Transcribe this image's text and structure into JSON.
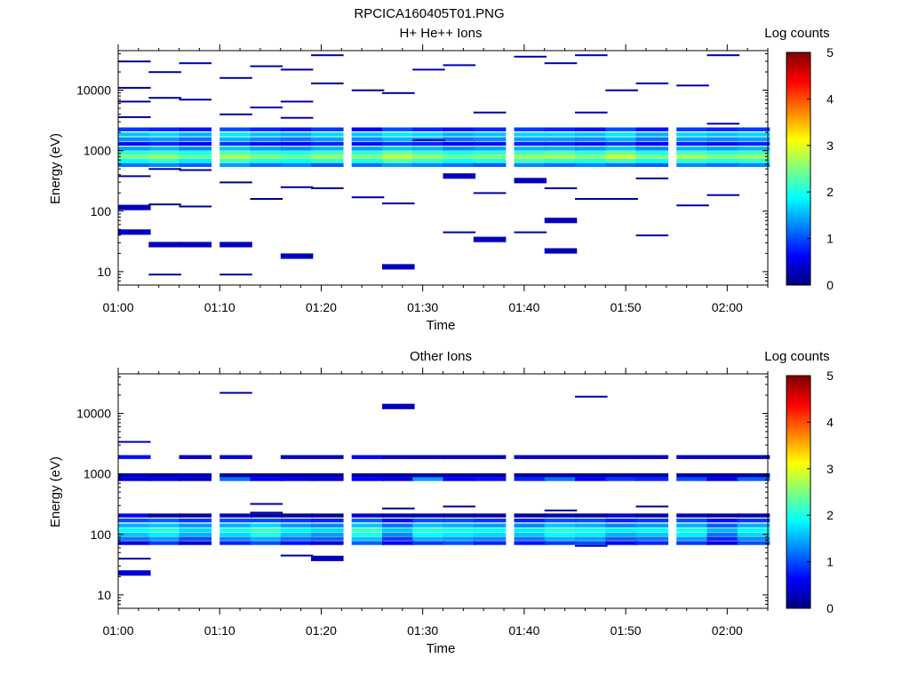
{
  "figure": {
    "title": "RPCICA160405T01.PNG"
  },
  "chart_data": [
    {
      "type": "heatmap",
      "title": "H+ He++ Ions",
      "xlabel": "Time",
      "ylabel": "Energy (eV)",
      "colorbar_label": "Log counts",
      "colorbar_ticks": [
        "0",
        "1",
        "2",
        "3",
        "4",
        "5"
      ],
      "colorbar_range": [
        0,
        5
      ],
      "yscale": "log",
      "ylim": [
        6,
        45000
      ],
      "y_ticks": [
        {
          "value": 10,
          "label": "10"
        },
        {
          "value": 100,
          "label": "100"
        },
        {
          "value": 1000,
          "label": "1000"
        },
        {
          "value": 10000,
          "label": "10000"
        }
      ],
      "xlim_minutes": [
        0,
        64
      ],
      "x_ticks": [
        "01:00",
        "01:10",
        "01:20",
        "01:30",
        "01:40",
        "01:50",
        "02:00"
      ],
      "time_bins": [
        "01:00",
        "01:03",
        "01:06",
        "01:10",
        "01:13",
        "01:16",
        "01:19",
        "01:23",
        "01:26",
        "01:29",
        "01:32",
        "01:35",
        "01:39",
        "01:42",
        "01:45",
        "01:48",
        "01:51",
        "01:55",
        "01:58",
        "02:01"
      ],
      "common_energy_bins": [
        {
          "e": 580,
          "levels": [
            1.2,
            1.3,
            1.1,
            1.4,
            1.2,
            1.3,
            1.1,
            1.2,
            1.4,
            1.3,
            1.2,
            1.1,
            1.3,
            1.2,
            1.3,
            1.2,
            1.1,
            1.3,
            1.2,
            1.3
          ]
        },
        {
          "e": 680,
          "levels": [
            1.9,
            2.1,
            1.8,
            2.2,
            2.0,
            1.9,
            2.1,
            2.0,
            2.3,
            2.1,
            1.9,
            2.0,
            2.2,
            2.1,
            2.0,
            2.2,
            1.9,
            2.1,
            2.0,
            2.1
          ]
        },
        {
          "e": 790,
          "levels": [
            2.5,
            2.6,
            2.4,
            2.7,
            2.5,
            2.4,
            2.6,
            2.5,
            2.8,
            2.6,
            2.4,
            2.5,
            2.6,
            2.7,
            2.5,
            2.9,
            2.5,
            2.7,
            2.5,
            2.6
          ]
        },
        {
          "e": 920,
          "levels": [
            2.1,
            2.2,
            2.0,
            2.3,
            2.1,
            2.0,
            2.2,
            2.1,
            2.4,
            2.2,
            2.0,
            2.1,
            2.2,
            2.3,
            2.1,
            2.4,
            2.0,
            2.2,
            2.1,
            2.2
          ]
        },
        {
          "e": 1080,
          "levels": [
            1.4,
            1.5,
            1.3,
            1.6,
            1.4,
            1.3,
            1.5,
            1.4,
            1.6,
            1.5,
            1.3,
            1.4,
            1.5,
            1.5,
            1.4,
            1.6,
            1.3,
            1.5,
            1.4,
            1.5
          ]
        },
        {
          "e": 1300,
          "levels": [
            0.7,
            0.8,
            0.6,
            0.9,
            0.7,
            0.6,
            0.8,
            0.7,
            0.9,
            0.8,
            0.6,
            0.7,
            0.8,
            0.8,
            0.7,
            0.9,
            0.6,
            0.8,
            0.7,
            0.8
          ]
        },
        {
          "e": 1550,
          "levels": [
            1.3,
            1.4,
            1.2,
            1.5,
            1.3,
            1.2,
            1.4,
            1.3,
            1.5,
            1.4,
            1.2,
            1.3,
            1.4,
            1.4,
            1.3,
            1.5,
            1.2,
            1.4,
            1.3,
            1.4
          ]
        },
        {
          "e": 1850,
          "levels": [
            1.6,
            1.7,
            1.5,
            1.8,
            1.6,
            1.5,
            1.7,
            1.6,
            1.8,
            1.7,
            1.5,
            1.6,
            1.7,
            1.7,
            1.6,
            1.8,
            1.5,
            1.7,
            1.6,
            1.7
          ]
        },
        {
          "e": 2250,
          "levels": [
            0.9,
            0.8,
            0.7,
            1.0,
            0.8,
            0.7,
            0.9,
            0.6,
            1.0,
            0.8,
            0.7,
            0.8,
            0.9,
            0.8,
            0.7,
            1.0,
            0.7,
            0.9,
            0.8,
            0.9
          ]
        }
      ],
      "sparse_cells": [
        {
          "t": 0,
          "e": 115,
          "v": 0.3
        },
        {
          "t": 0,
          "e": 45,
          "v": 0.3
        },
        {
          "t": 0,
          "e": 380,
          "v": 0.2
        },
        {
          "t": 0,
          "e": 3600,
          "v": 0.1
        },
        {
          "t": 0,
          "e": 6500,
          "v": 0.1
        },
        {
          "t": 0,
          "e": 11000,
          "v": 0.1
        },
        {
          "t": 0,
          "e": 30000,
          "v": 0.1
        },
        {
          "t": 1,
          "e": 9,
          "v": 0.2
        },
        {
          "t": 1,
          "e": 28,
          "v": 0.3
        },
        {
          "t": 1,
          "e": 130,
          "v": 0.1
        },
        {
          "t": 1,
          "e": 500,
          "v": 0.1
        },
        {
          "t": 1,
          "e": 7500,
          "v": 0.1
        },
        {
          "t": 1,
          "e": 20000,
          "v": 0.2
        },
        {
          "t": 2,
          "e": 28,
          "v": 0.3
        },
        {
          "t": 2,
          "e": 120,
          "v": 0.1
        },
        {
          "t": 2,
          "e": 480,
          "v": 0.1
        },
        {
          "t": 2,
          "e": 7000,
          "v": 0.2
        },
        {
          "t": 2,
          "e": 28000,
          "v": 0.2
        },
        {
          "t": 3,
          "e": 9,
          "v": 0.2
        },
        {
          "t": 3,
          "e": 28,
          "v": 0.3
        },
        {
          "t": 3,
          "e": 300,
          "v": 0.1
        },
        {
          "t": 3,
          "e": 4000,
          "v": 0.2
        },
        {
          "t": 3,
          "e": 16000,
          "v": 0.2
        },
        {
          "t": 4,
          "e": 160,
          "v": 0.1
        },
        {
          "t": 4,
          "e": 5200,
          "v": 0.2
        },
        {
          "t": 4,
          "e": 25000,
          "v": 0.2
        },
        {
          "t": 5,
          "e": 18,
          "v": 0.3
        },
        {
          "t": 5,
          "e": 250,
          "v": 0.2
        },
        {
          "t": 5,
          "e": 3500,
          "v": 0.2
        },
        {
          "t": 5,
          "e": 6500,
          "v": 0.2
        },
        {
          "t": 5,
          "e": 22000,
          "v": 0.1
        },
        {
          "t": 6,
          "e": 240,
          "v": 0.2
        },
        {
          "t": 6,
          "e": 13000,
          "v": 0.1
        },
        {
          "t": 6,
          "e": 38000,
          "v": 0.1
        },
        {
          "t": 7,
          "e": 170,
          "v": 0.1
        },
        {
          "t": 7,
          "e": 10000,
          "v": 0.1
        },
        {
          "t": 8,
          "e": 12,
          "v": 0.3
        },
        {
          "t": 8,
          "e": 135,
          "v": 0.1
        },
        {
          "t": 8,
          "e": 9000,
          "v": 0.1
        },
        {
          "t": 9,
          "e": 1500,
          "v": 0.2
        },
        {
          "t": 9,
          "e": 22000,
          "v": 0.2
        },
        {
          "t": 10,
          "e": 45,
          "v": 0.2
        },
        {
          "t": 10,
          "e": 380,
          "v": 0.3
        },
        {
          "t": 10,
          "e": 26000,
          "v": 0.2
        },
        {
          "t": 11,
          "e": 34,
          "v": 0.3
        },
        {
          "t": 11,
          "e": 200,
          "v": 0.2
        },
        {
          "t": 11,
          "e": 4300,
          "v": 0.2
        },
        {
          "t": 12,
          "e": 45,
          "v": 0.2
        },
        {
          "t": 12,
          "e": 320,
          "v": 0.3
        },
        {
          "t": 12,
          "e": 36000,
          "v": 0.2
        },
        {
          "t": 13,
          "e": 22,
          "v": 0.3
        },
        {
          "t": 13,
          "e": 70,
          "v": 0.3
        },
        {
          "t": 13,
          "e": 240,
          "v": 0.2
        },
        {
          "t": 13,
          "e": 28000,
          "v": 0.1
        },
        {
          "t": 14,
          "e": 160,
          "v": 0.2
        },
        {
          "t": 14,
          "e": 4300,
          "v": 0.2
        },
        {
          "t": 14,
          "e": 38000,
          "v": 0.2
        },
        {
          "t": 15,
          "e": 160,
          "v": 0.2
        },
        {
          "t": 15,
          "e": 10000,
          "v": 0.1
        },
        {
          "t": 16,
          "e": 40,
          "v": 0.2
        },
        {
          "t": 16,
          "e": 350,
          "v": 0.2
        },
        {
          "t": 16,
          "e": 13000,
          "v": 0.2
        },
        {
          "t": 17,
          "e": 125,
          "v": 0.1
        },
        {
          "t": 17,
          "e": 12000,
          "v": 0.2
        },
        {
          "t": 18,
          "e": 185,
          "v": 0.2
        },
        {
          "t": 18,
          "e": 2800,
          "v": 0.2
        },
        {
          "t": 18,
          "e": 38000,
          "v": 0.1
        }
      ]
    },
    {
      "type": "heatmap",
      "title": "Other Ions",
      "xlabel": "Time",
      "ylabel": "Energy (eV)",
      "colorbar_label": "Log counts",
      "colorbar_ticks": [
        "0",
        "1",
        "2",
        "3",
        "4",
        "5"
      ],
      "colorbar_range": [
        0,
        5
      ],
      "yscale": "log",
      "ylim": [
        6,
        45000
      ],
      "y_ticks": [
        {
          "value": 10,
          "label": "10"
        },
        {
          "value": 100,
          "label": "100"
        },
        {
          "value": 1000,
          "label": "1000"
        },
        {
          "value": 10000,
          "label": "10000"
        }
      ],
      "xlim_minutes": [
        0,
        64
      ],
      "x_ticks": [
        "01:00",
        "01:10",
        "01:20",
        "01:30",
        "01:40",
        "01:50",
        "02:00"
      ],
      "time_bins": [
        "01:00",
        "01:03",
        "01:06",
        "01:10",
        "01:13",
        "01:16",
        "01:19",
        "01:23",
        "01:26",
        "01:29",
        "01:32",
        "01:35",
        "01:39",
        "01:42",
        "01:45",
        "01:48",
        "01:51",
        "01:55",
        "01:58",
        "02:01"
      ],
      "common_energy_bins": [
        {
          "e": 72,
          "levels": [
            0.5,
            0.9,
            0.4,
            0.8,
            1.0,
            0.7,
            0.5,
            1.1,
            0.6,
            0.9,
            1.0,
            0.8,
            0.7,
            0.9,
            1.0,
            0.6,
            0.8,
            0.9,
            0.5,
            1.0
          ]
        },
        {
          "e": 85,
          "levels": [
            1.2,
            1.4,
            1.0,
            1.3,
            1.5,
            1.2,
            1.1,
            1.6,
            0.9,
            1.5,
            1.4,
            1.3,
            1.2,
            1.5,
            1.4,
            1.1,
            1.2,
            1.4,
            0.8,
            1.3
          ]
        },
        {
          "e": 100,
          "levels": [
            1.6,
            1.8,
            1.5,
            1.7,
            2.0,
            1.6,
            1.4,
            2.0,
            1.3,
            1.9,
            1.8,
            1.7,
            1.6,
            1.9,
            1.8,
            1.5,
            1.6,
            1.8,
            1.2,
            1.7
          ]
        },
        {
          "e": 118,
          "levels": [
            1.9,
            2.1,
            1.7,
            2.0,
            2.2,
            1.8,
            1.7,
            2.2,
            1.6,
            2.1,
            2.0,
            1.9,
            1.8,
            2.1,
            2.0,
            1.8,
            1.9,
            2.0,
            1.5,
            1.9
          ]
        },
        {
          "e": 140,
          "levels": [
            1.5,
            1.6,
            1.4,
            1.5,
            1.7,
            1.4,
            1.3,
            1.6,
            1.2,
            1.6,
            1.5,
            1.4,
            1.3,
            1.6,
            1.5,
            1.3,
            1.4,
            1.5,
            1.1,
            1.5
          ]
        },
        {
          "e": 170,
          "levels": [
            1.0,
            1.1,
            0.9,
            1.0,
            1.0,
            0.9,
            0.8,
            1.1,
            0.7,
            1.0,
            1.0,
            0.9,
            0.8,
            1.0,
            1.0,
            0.8,
            0.9,
            1.0,
            0.7,
            0.9
          ]
        },
        {
          "e": 205,
          "levels": [
            0.6,
            0.2,
            0.1,
            0.3,
            0.2,
            0.1,
            0.1,
            0.4,
            0.2,
            0.3,
            0.2,
            0.2,
            0.1,
            0.3,
            0.2,
            0.4,
            0.2,
            0.3,
            0.1,
            0.2
          ]
        },
        {
          "e": 820,
          "levels": [
            0.4,
            0.5,
            0.3,
            1.2,
            0.6,
            0.5,
            0.4,
            0.6,
            0.5,
            1.4,
            0.6,
            0.7,
            0.8,
            1.2,
            0.6,
            0.9,
            0.8,
            1.0,
            0.5,
            1.1
          ]
        },
        {
          "e": 950,
          "levels": [
            0.3,
            0.2,
            0.3,
            0.2,
            0.2,
            0.2,
            0.2,
            0.2,
            0.2,
            0.2,
            0.2,
            0.2,
            0.2,
            0.2,
            0.2,
            0.2,
            0.2,
            0.2,
            0.2,
            0.2
          ]
        },
        {
          "e": 1900,
          "levels": [
            0.7,
            0.0,
            0.3,
            0.4,
            0.0,
            0.3,
            0.3,
            0.6,
            0.3,
            0.3,
            0.3,
            0.3,
            0.3,
            0.3,
            0.3,
            0.3,
            0.3,
            0.3,
            0.3,
            0.3
          ]
        }
      ],
      "sparse_cells": [
        {
          "t": 0,
          "e": 40,
          "v": 0.2
        },
        {
          "t": 0,
          "e": 23,
          "v": 0.4
        },
        {
          "t": 0,
          "e": 3400,
          "v": 0.2
        },
        {
          "t": 3,
          "e": 22000,
          "v": 0.1
        },
        {
          "t": 4,
          "e": 230,
          "v": 0.1
        },
        {
          "t": 4,
          "e": 320,
          "v": 0.1
        },
        {
          "t": 5,
          "e": 45,
          "v": 0.1
        },
        {
          "t": 6,
          "e": 40,
          "v": 0.3
        },
        {
          "t": 8,
          "e": 270,
          "v": 0.1
        },
        {
          "t": 8,
          "e": 13000,
          "v": 0.3
        },
        {
          "t": 10,
          "e": 290,
          "v": 0.1
        },
        {
          "t": 13,
          "e": 250,
          "v": 0.1
        },
        {
          "t": 14,
          "e": 65,
          "v": 0.2
        },
        {
          "t": 14,
          "e": 19000,
          "v": 0.1
        },
        {
          "t": 16,
          "e": 290,
          "v": 0.1
        }
      ]
    }
  ]
}
